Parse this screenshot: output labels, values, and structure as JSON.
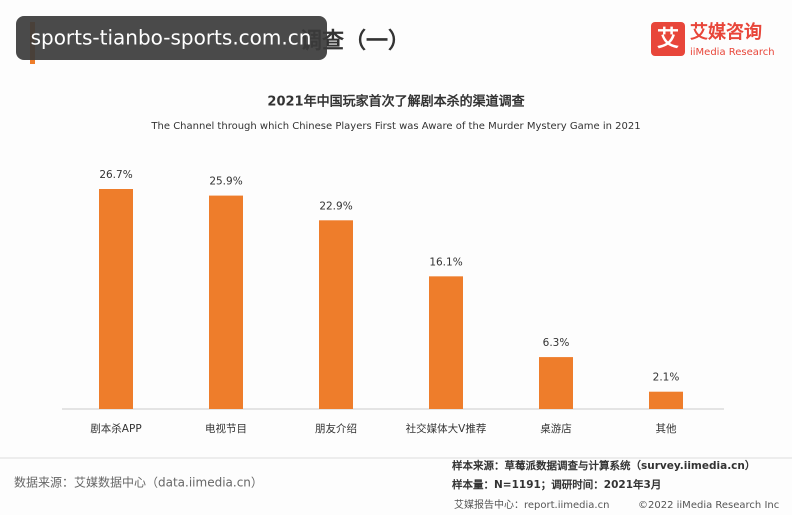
{
  "header": {
    "title": "调查（一）",
    "watermark": "sports-tianbo-sports.com.cn",
    "logo": "艾媒咨询",
    "logo_sub": "iiMedia Research"
  },
  "chart_data": {
    "type": "bar",
    "title": "2021年中国玩家首次了解剧本杀的渠道调查",
    "subtitle": "The Channel through which Chinese Players First was Aware of the Murder Mystery Game in 2021",
    "categories": [
      "剧本杀APP",
      "电视节目",
      "朋友介绍",
      "社交媒体大V推荐",
      "桌游店",
      "其他"
    ],
    "values": [
      26.7,
      25.9,
      22.9,
      16.1,
      6.3,
      2.1
    ],
    "value_labels": [
      "26.7%",
      "25.9%",
      "22.9%",
      "16.1%",
      "6.3%",
      "2.1%"
    ],
    "color": "#ee7d2b"
  },
  "footer": {
    "source": "数据来源：艾媒数据中心（data.iimedia.cn）",
    "sample_source": "样本来源：草莓派数据调查与计算系统（survey.iimedia.cn）",
    "sample_size": "样本量：N=1191；调研时间：2021年3月",
    "report_center": "艾媒报告中心：report.iimedia.cn",
    "copyright": "©2022  iiMedia Research  Inc"
  }
}
